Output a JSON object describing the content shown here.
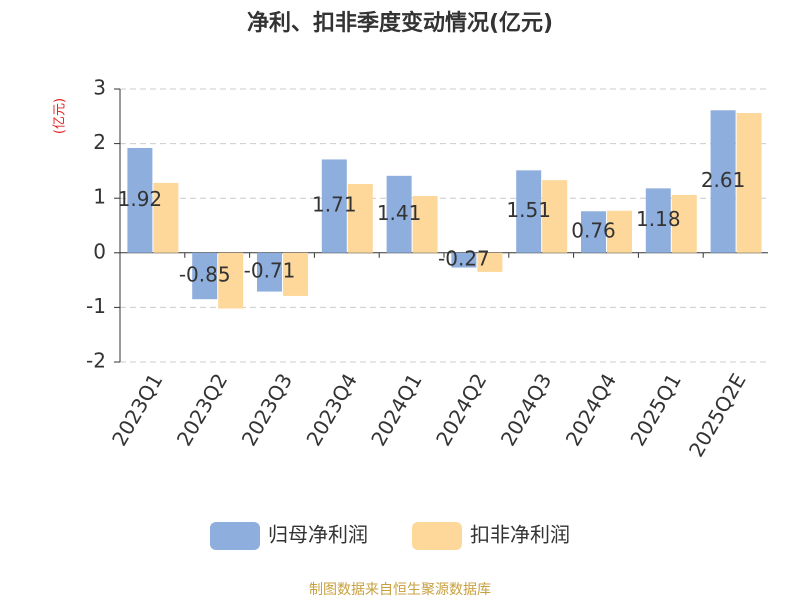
{
  "chart_data": {
    "type": "bar",
    "title": "净利、扣非季度变动情况(亿元)",
    "y_axis_label": "(亿元)",
    "categories": [
      "2023Q1",
      "2023Q2",
      "2023Q3",
      "2023Q4",
      "2024Q1",
      "2024Q2",
      "2024Q3",
      "2024Q4",
      "2025Q1",
      "2025Q2E"
    ],
    "series": [
      {
        "name": "归母净利润",
        "color": "#8eaedd",
        "values": [
          1.92,
          -0.85,
          -0.71,
          1.71,
          1.41,
          -0.27,
          1.51,
          0.76,
          1.18,
          2.61
        ],
        "show_labels": true
      },
      {
        "name": "扣非净利润",
        "color": "#fdd89a",
        "values": [
          1.28,
          -1.02,
          -0.79,
          1.26,
          1.04,
          -0.35,
          1.33,
          0.77,
          1.06,
          2.56
        ],
        "show_labels": false
      }
    ],
    "ylim": [
      -2,
      3
    ],
    "yticks": [
      -2,
      -1,
      0,
      1,
      2,
      3
    ],
    "grid": true,
    "legend": "bottom",
    "source": "制图数据来自恒生聚源数据库"
  }
}
